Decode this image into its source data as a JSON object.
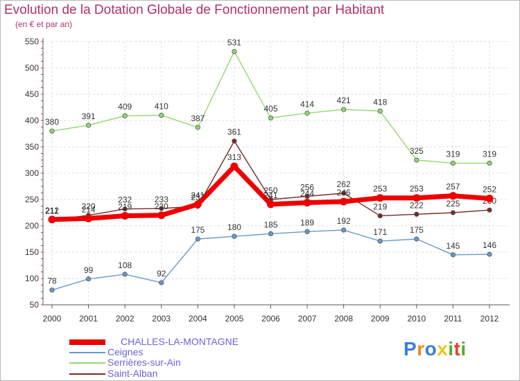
{
  "header": {
    "title": "Evolution de la Dotation Globale de Fonctionnement par Habitant",
    "subtitle": "(en € et par an)"
  },
  "chart_data": {
    "type": "line",
    "title": "Evolution de la Dotation Globale de Fonctionnement par Habitant",
    "subtitle": "(en € et par an)",
    "xlabel": "",
    "ylabel": "",
    "x": [
      "2000",
      "2001",
      "2002",
      "2003",
      "2004",
      "2005",
      "2006",
      "2007",
      "2008",
      "2009",
      "2010",
      "2011",
      "2012"
    ],
    "ylim": [
      50,
      550
    ],
    "yticks": [
      50,
      100,
      150,
      200,
      250,
      300,
      350,
      400,
      450,
      500,
      550
    ],
    "series": [
      {
        "name": "Serrières-sur-Ain",
        "color": "#90d870",
        "values": [
          380,
          391,
          409,
          410,
          387,
          531,
          405,
          414,
          421,
          418,
          325,
          319,
          319
        ]
      },
      {
        "name": "Ceignes",
        "color": "#6699cc",
        "values": [
          78,
          99,
          108,
          92,
          175,
          180,
          185,
          189,
          192,
          171,
          175,
          145,
          146
        ]
      },
      {
        "name": "Saint-Alban",
        "color": "#7a2828",
        "values": [
          211,
          220,
          232,
          233,
          237,
          361,
          250,
          256,
          262,
          219,
          222,
          225,
          230
        ]
      },
      {
        "name": "CHALLES-LA-MONTAGNE",
        "color": "#ee0000",
        "values": [
          212,
          214,
          219,
          220,
          241,
          313,
          241,
          244,
          246,
          253,
          253,
          257,
          252
        ]
      }
    ],
    "legend": [
      "CHALLES-LA-MONTAGNE",
      "Ceignes",
      "Serrières-sur-Ain",
      "Saint-Alban"
    ],
    "legend_position": "bottom-left"
  },
  "logo": {
    "letters": [
      "P",
      "r",
      "o",
      "x",
      "i",
      "t",
      "i"
    ],
    "colors": [
      "#3a7fd5",
      "#f08a1c",
      "#3a7fd5",
      "#f0c419",
      "#55aa33",
      "#e8412c",
      "#55aa33"
    ]
  }
}
